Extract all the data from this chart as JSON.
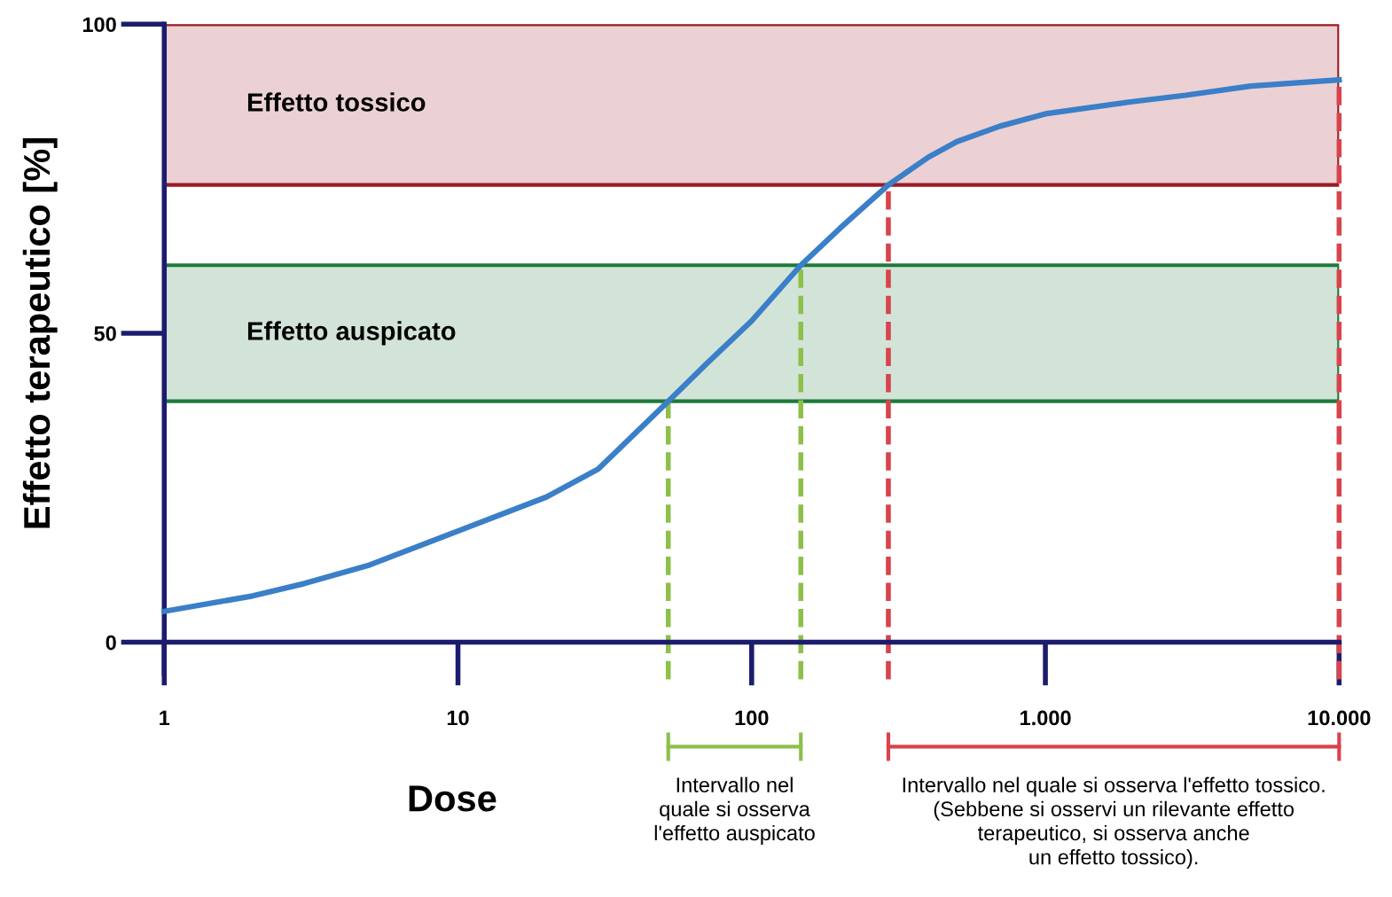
{
  "chart_data": {
    "type": "line",
    "xlabel": "Dose",
    "ylabel": "Effetto terapeutico [%]",
    "log": "x",
    "xlim": [
      1,
      10000
    ],
    "xticks": [
      1,
      10,
      100,
      {
        "value": 1000,
        "label": "1.000"
      },
      {
        "value": 10000,
        "label": "10.000"
      }
    ],
    "ylim": [
      0,
      100
    ],
    "yticks": [
      0,
      50,
      100
    ],
    "grid": false,
    "marker": "none",
    "line_style": "solid",
    "series": [
      {
        "color": "#3a7fc8",
        "x": [
          1,
          2,
          3,
          5,
          10,
          20,
          30,
          52,
          70,
          100,
          147,
          200,
          292,
          400,
          500,
          700,
          1000,
          2000,
          3000,
          5000,
          10000
        ],
        "values": [
          5,
          7.5,
          9.5,
          12.5,
          18,
          23.5,
          28,
          39,
          45,
          52,
          61,
          67,
          74,
          78.5,
          81,
          83.5,
          85.5,
          87.5,
          88.5,
          90,
          91
        ]
      }
    ],
    "bands": [
      {
        "axis": "y",
        "from": 74,
        "to": 100,
        "label": "Effetto tossico",
        "color": "#9b1b24"
      },
      {
        "axis": "y",
        "from": 39,
        "to": 61,
        "label": "Effetto auspicato",
        "color": "#1e7a3a"
      }
    ],
    "ref_lines": [
      {
        "axis": "x",
        "value": 52,
        "color": "#8dc04a",
        "line_style": "dashed"
      },
      {
        "axis": "x",
        "value": 147,
        "color": "#8dc04a",
        "line_style": "dashed"
      },
      {
        "axis": "x",
        "value": 292,
        "color": "#d9434b",
        "line_style": "dashed"
      },
      {
        "axis": "x",
        "value": 10000,
        "color": "#d9434b",
        "line_style": "dashed"
      }
    ],
    "annotations": [
      "Intervallo nel\nquale si osserva\nl'effetto auspicato",
      "Intervallo nel quale si osserva l'effetto tossico.\n(Sebbene si osservi un rilevante effetto\nterapeutico, si osserva anche\nun effetto tossico)."
    ]
  }
}
